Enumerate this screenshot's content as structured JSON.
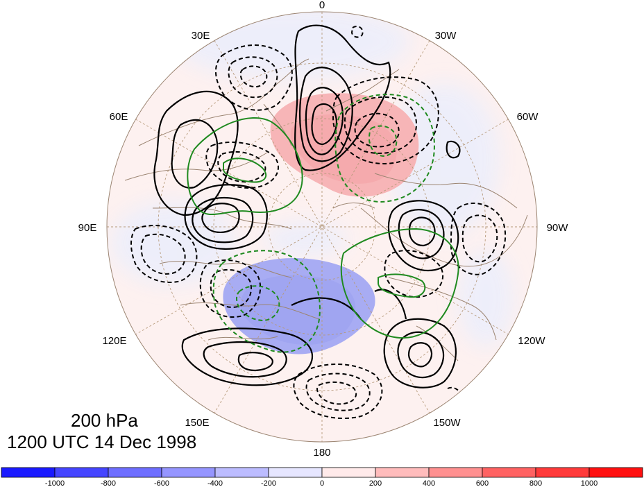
{
  "map": {
    "projection": "north-polar-stereographic",
    "longitude_labels": [
      "0",
      "30W",
      "60W",
      "90W",
      "120W",
      "150W",
      "180",
      "150E",
      "120E",
      "90E",
      "60E",
      "30E"
    ],
    "field_shading": "anomaly (blue = negative, red = positive)",
    "contour_styles": [
      "solid black (positive)",
      "dashed black (negative)",
      "solid green",
      "dashed green"
    ]
  },
  "captions": {
    "level": "200 hPa",
    "time": "1200 UTC 14 Dec 1998"
  },
  "colorbar": {
    "ticks": [
      "-1000",
      "-800",
      "-600",
      "-400",
      "-200",
      "0",
      "200",
      "400",
      "600",
      "800",
      "1000"
    ],
    "colors": [
      "#1a1aff",
      "#4545ff",
      "#6e6eff",
      "#9595ff",
      "#bcbcff",
      "#e6e6ff",
      "#ffeaea",
      "#ffbcbc",
      "#ff9090",
      "#ff6262",
      "#ff3a3a",
      "#ff1010"
    ]
  },
  "colors": {
    "land_outline": "#9c8572",
    "graticule": "#b69a7a",
    "positive_contour": "#000000",
    "green_contour": "#1f8a1f"
  }
}
